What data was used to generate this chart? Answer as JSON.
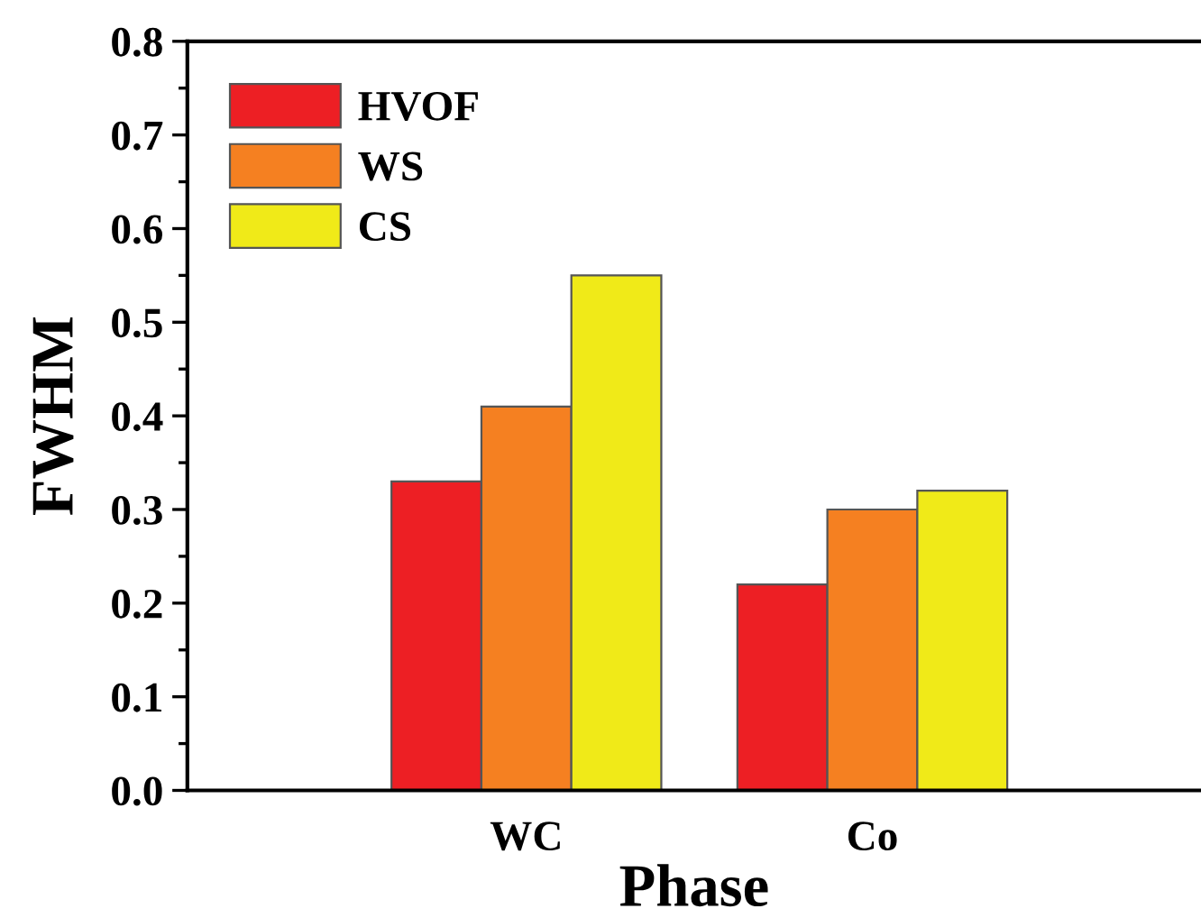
{
  "chart_data": {
    "type": "bar",
    "xlabel": "Phase",
    "ylabel": "FWHM",
    "categories": [
      "WC",
      "Co"
    ],
    "series": [
      {
        "name": "HVOF",
        "color": "#ed1f24",
        "values": [
          0.33,
          0.22
        ]
      },
      {
        "name": "WS",
        "color": "#f58021",
        "values": [
          0.41,
          0.3
        ]
      },
      {
        "name": "CS",
        "color": "#f0ea18",
        "values": [
          0.55,
          0.32
        ]
      }
    ],
    "ylim": [
      0.0,
      0.8
    ],
    "yticks": [
      {
        "value": 0.0,
        "label": "0.0"
      },
      0.1,
      0.2,
      0.3,
      0.4,
      0.5,
      0.6,
      0.7,
      0.8
    ],
    "grid": false,
    "legend": "top left"
  }
}
